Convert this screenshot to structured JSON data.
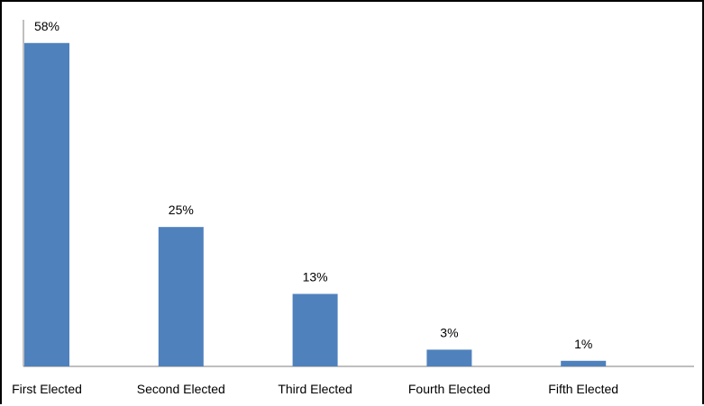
{
  "chart_data": {
    "type": "bar",
    "categories": [
      "First Elected",
      "Second Elected",
      "Third Elected",
      "Fourth Elected",
      "Fifth Elected"
    ],
    "values": [
      58,
      25,
      13,
      3,
      1
    ],
    "data_labels": [
      "58%",
      "25%",
      "13%",
      "3%",
      "1%"
    ],
    "ylim": [
      0,
      62
    ],
    "grid": false,
    "legend": "none",
    "title": "",
    "xlabel": "",
    "ylabel": "",
    "colors": {
      "bar": "#4F81BD",
      "axis": "#7F7F7F"
    }
  }
}
